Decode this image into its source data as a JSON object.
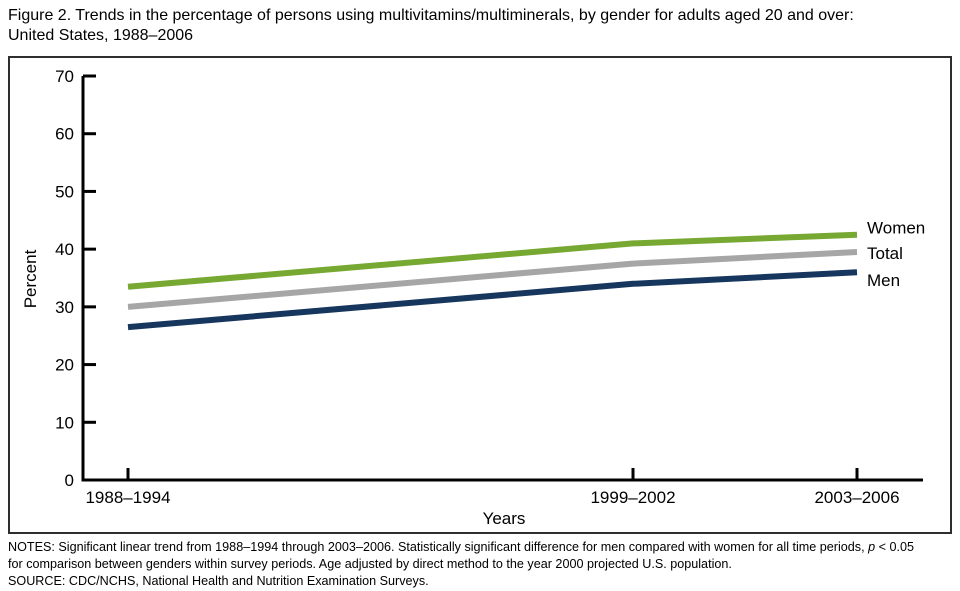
{
  "title": {
    "line1": "Figure 2. Trends in the percentage of persons using multivitamins/multiminerals, by gender for adults aged 20 and over:",
    "line2": "United States, 1988–2006"
  },
  "chart_data": {
    "type": "line",
    "categories": [
      "1988–1994",
      "1999–2002",
      "2003–2006"
    ],
    "x_numeric": [
      1991,
      2000.5,
      2004.5
    ],
    "series": [
      {
        "name": "Women",
        "values": [
          33.5,
          41.0,
          42.5
        ],
        "color": "#76A832"
      },
      {
        "name": "Total",
        "values": [
          30.0,
          37.5,
          39.5
        ],
        "color": "#A6A6A6"
      },
      {
        "name": "Men",
        "values": [
          26.5,
          34.0,
          36.0
        ],
        "color": "#17365D"
      }
    ],
    "xlabel": "Years",
    "ylabel": "Percent",
    "ylim": [
      0,
      70
    ],
    "yticks": [
      0,
      10,
      20,
      30,
      40,
      50,
      60,
      70
    ],
    "grid": false,
    "legend_position": "line-end-labels",
    "axis_color": "#000000"
  },
  "notes": {
    "line1_pre": "NOTES: Significant linear trend from 1988–1994 through 2003–2006. Statistically significant difference for men compared with women for all time periods, ",
    "line1_italic": "p",
    "line1_post": " < 0.05",
    "line2": "for comparison between genders within survey periods. Age adjusted by direct method to the year 2000 projected U.S. population.",
    "source": "SOURCE: CDC/NCHS, National Health and Nutrition Examination Surveys."
  }
}
